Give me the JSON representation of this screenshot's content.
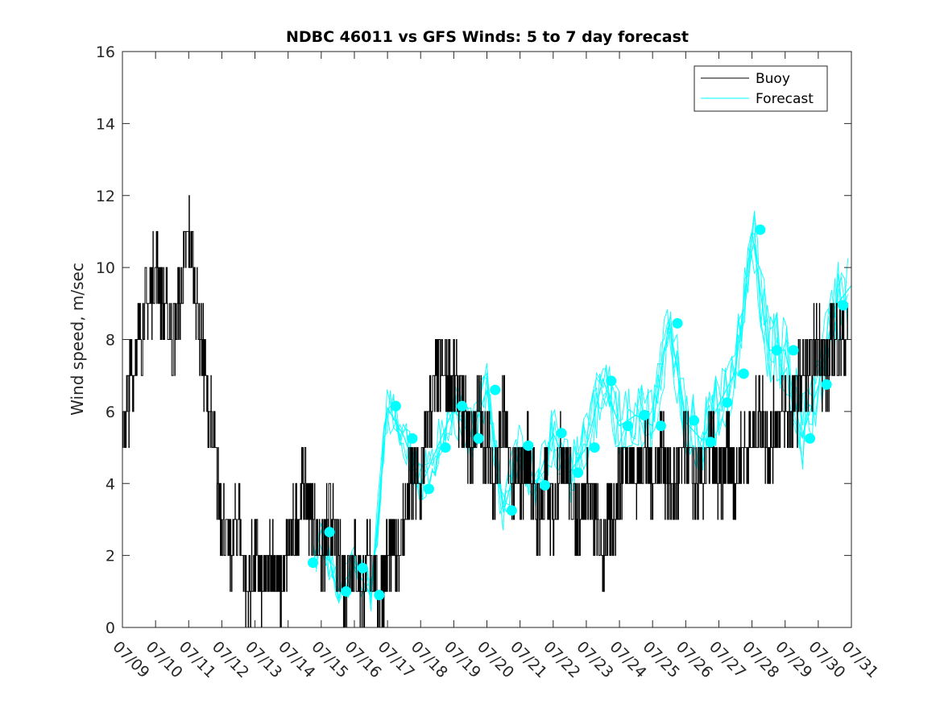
{
  "chart_data": {
    "type": "line",
    "title": "NDBC 46011 vs GFS Winds: 5 to 7 day forecast",
    "xlabel": "",
    "ylabel": "Wind speed, m/sec",
    "ylim": [
      0,
      16
    ],
    "yticks": [
      "0",
      "2",
      "4",
      "6",
      "8",
      "10",
      "12",
      "14",
      "16"
    ],
    "xlim": [
      "07/09",
      "07/31"
    ],
    "xticks": [
      "07/09",
      "07/10",
      "07/11",
      "07/12",
      "07/13",
      "07/14",
      "07/15",
      "07/16",
      "07/17",
      "07/18",
      "07/19",
      "07/20",
      "07/21",
      "07/22",
      "07/23",
      "07/24",
      "07/25",
      "07/26",
      "07/27",
      "07/28",
      "07/29",
      "07/30",
      "07/31"
    ],
    "grid": false,
    "legend_position": "top-right",
    "colors": {
      "buoy": "#000000",
      "forecast": "#00ffff",
      "axes": "#262626"
    },
    "series": [
      {
        "name": "Buoy",
        "x": [
          "07/09 00:00",
          "07/09 06:00",
          "07/09 12:00",
          "07/09 18:00",
          "07/10 00:00",
          "07/10 06:00",
          "07/10 12:00",
          "07/10 18:00",
          "07/11 00:00",
          "07/11 06:00",
          "07/11 12:00",
          "07/11 18:00",
          "07/12 00:00",
          "07/12 06:00",
          "07/12 12:00",
          "07/12 18:00",
          "07/13 00:00",
          "07/13 06:00",
          "07/13 12:00",
          "07/13 18:00",
          "07/14 00:00",
          "07/14 06:00",
          "07/14 12:00",
          "07/14 18:00",
          "07/15 00:00",
          "07/15 06:00",
          "07/15 12:00",
          "07/15 18:00",
          "07/16 00:00",
          "07/16 06:00",
          "07/16 12:00",
          "07/16 18:00",
          "07/17 00:00",
          "07/17 06:00",
          "07/17 12:00",
          "07/17 18:00",
          "07/18 00:00",
          "07/18 06:00",
          "07/18 12:00",
          "07/18 18:00",
          "07/19 00:00",
          "07/19 06:00",
          "07/19 12:00",
          "07/19 18:00",
          "07/20 00:00",
          "07/20 06:00",
          "07/20 12:00",
          "07/20 18:00",
          "07/21 00:00",
          "07/21 06:00",
          "07/21 12:00",
          "07/21 18:00",
          "07/22 00:00",
          "07/22 06:00",
          "07/22 12:00",
          "07/22 18:00",
          "07/23 00:00",
          "07/23 06:00",
          "07/23 12:00",
          "07/23 18:00",
          "07/24 00:00",
          "07/24 06:00",
          "07/24 12:00",
          "07/24 18:00",
          "07/25 00:00",
          "07/25 06:00",
          "07/25 12:00",
          "07/25 18:00",
          "07/26 00:00",
          "07/26 06:00",
          "07/26 12:00",
          "07/26 18:00",
          "07/27 00:00",
          "07/27 06:00",
          "07/27 12:00",
          "07/27 18:00",
          "07/28 00:00",
          "07/28 06:00",
          "07/28 12:00",
          "07/28 18:00",
          "07/29 00:00",
          "07/29 06:00",
          "07/29 12:00",
          "07/29 18:00",
          "07/30 00:00",
          "07/30 06:00",
          "07/30 12:00",
          "07/30 18:00",
          "07/31 00:00"
        ],
        "values": [
          5,
          7,
          8,
          9,
          10,
          9,
          8,
          9,
          11,
          9,
          7,
          5,
          3,
          2,
          3,
          1,
          2,
          1,
          2,
          1,
          2,
          3,
          4,
          3,
          2,
          3,
          2,
          1,
          2,
          1,
          2,
          1,
          2,
          2,
          3,
          4,
          4,
          6,
          7,
          7,
          7,
          6,
          5,
          6,
          5,
          4,
          6,
          4,
          4,
          5,
          3,
          4,
          3,
          5,
          4,
          3,
          4,
          3,
          2,
          3,
          4,
          5,
          4,
          5,
          4,
          5,
          4,
          4,
          5,
          4,
          4,
          5,
          4,
          5,
          4,
          5,
          5,
          6,
          5,
          6,
          6,
          6,
          7,
          7,
          8,
          7,
          8,
          8,
          8
        ]
      },
      {
        "name": "Forecast",
        "x": [
          "07/14 18:00",
          "07/15 00:00",
          "07/15 12:00",
          "07/16 00:00",
          "07/16 12:00",
          "07/17 00:00",
          "07/17 12:00",
          "07/18 00:00",
          "07/18 12:00",
          "07/19 00:00",
          "07/19 12:00",
          "07/20 00:00",
          "07/20 12:00",
          "07/21 00:00",
          "07/21 12:00",
          "07/22 00:00",
          "07/22 12:00",
          "07/23 00:00",
          "07/23 12:00",
          "07/24 00:00",
          "07/24 12:00",
          "07/25 00:00",
          "07/25 12:00",
          "07/26 00:00",
          "07/26 12:00",
          "07/27 00:00",
          "07/27 12:00",
          "07/28 00:00",
          "07/28 12:00",
          "07/29 00:00",
          "07/29 12:00",
          "07/30 00:00",
          "07/30 12:00",
          "07/31 00:00"
        ],
        "values": [
          1.8,
          2.7,
          1.0,
          1.7,
          0.9,
          6.1,
          5.3,
          3.9,
          5.0,
          6.1,
          5.3,
          6.6,
          3.2,
          5.0,
          4.0,
          5.4,
          4.3,
          5.0,
          6.9,
          5.6,
          5.9,
          5.6,
          8.5,
          5.7,
          5.2,
          6.2,
          7.1,
          11.0,
          7.7,
          7.7,
          5.3,
          6.7,
          8.9,
          9.5
        ]
      }
    ],
    "forecast_markers": {
      "x": [
        "07/14 18:00",
        "07/15 06:00",
        "07/15 18:00",
        "07/16 06:00",
        "07/16 18:00",
        "07/17 06:00",
        "07/17 18:00",
        "07/18 06:00",
        "07/18 18:00",
        "07/19 06:00",
        "07/19 18:00",
        "07/20 06:00",
        "07/20 18:00",
        "07/21 06:00",
        "07/21 18:00",
        "07/22 06:00",
        "07/22 18:00",
        "07/23 06:00",
        "07/23 18:00",
        "07/24 06:00",
        "07/24 18:00",
        "07/25 06:00",
        "07/25 18:00",
        "07/26 06:00",
        "07/26 18:00",
        "07/27 06:00",
        "07/27 18:00",
        "07/28 06:00",
        "07/28 18:00",
        "07/29 06:00",
        "07/29 18:00",
        "07/30 06:00",
        "07/30 18:00"
      ],
      "values": [
        1.8,
        2.65,
        1.0,
        1.65,
        0.9,
        6.15,
        5.25,
        3.85,
        5.0,
        6.15,
        5.25,
        6.6,
        3.25,
        5.05,
        3.95,
        5.4,
        4.3,
        5.0,
        6.85,
        5.6,
        5.9,
        5.6,
        8.45,
        5.75,
        5.15,
        6.25,
        7.05,
        11.05,
        7.7,
        7.7,
        5.25,
        6.75,
        8.95
      ]
    }
  }
}
